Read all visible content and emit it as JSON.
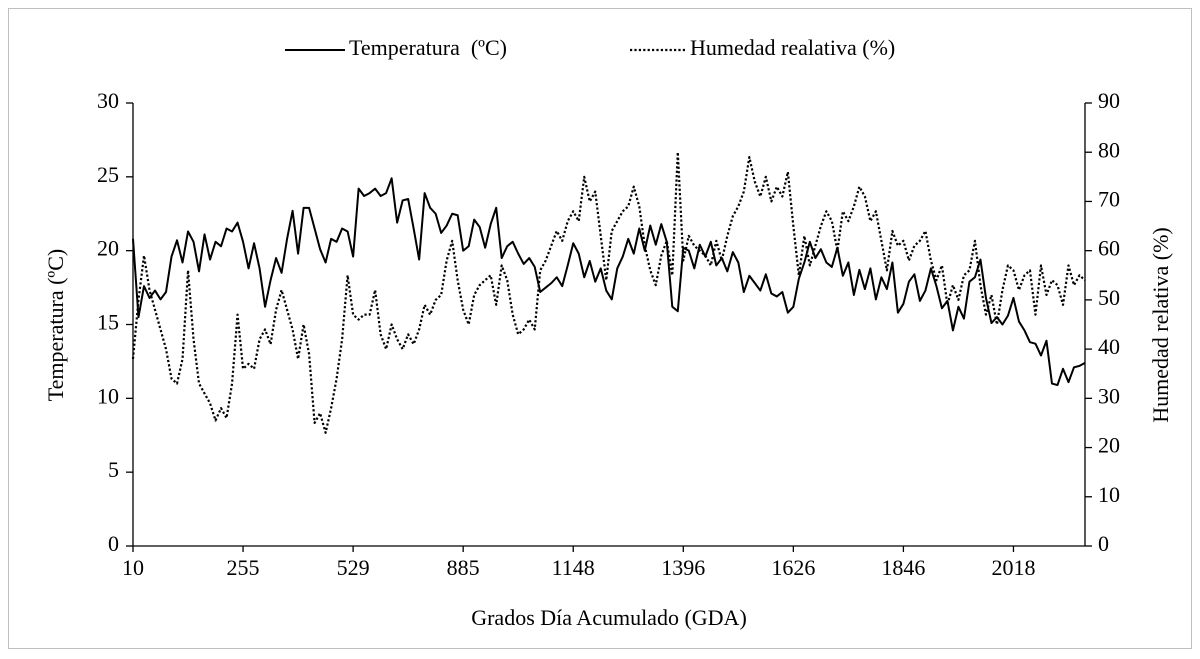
{
  "chart_data": {
    "type": "line",
    "xlabel": "Grados Día Acumulado (GDA)",
    "ylabel": "Temperatura (ºC)",
    "y2label": "Humedad relativa (%)",
    "categories": [
      "10",
      null,
      null,
      null,
      null,
      null,
      null,
      null,
      null,
      null,
      null,
      null,
      null,
      null,
      null,
      null,
      null,
      null,
      null,
      null,
      "255",
      null,
      null,
      null,
      null,
      null,
      null,
      null,
      null,
      null,
      null,
      null,
      null,
      null,
      null,
      null,
      null,
      null,
      null,
      null,
      "529",
      null,
      null,
      null,
      null,
      null,
      null,
      null,
      null,
      null,
      null,
      null,
      null,
      null,
      null,
      null,
      null,
      null,
      null,
      null,
      "885",
      null,
      null,
      null,
      null,
      null,
      null,
      null,
      null,
      null,
      null,
      null,
      null,
      null,
      null,
      null,
      null,
      null,
      null,
      null,
      "1148",
      null,
      null,
      null,
      null,
      null,
      null,
      null,
      null,
      null,
      null,
      null,
      null,
      null,
      null,
      null,
      null,
      null,
      null,
      null,
      "1396",
      null,
      null,
      null,
      null,
      null,
      null,
      null,
      null,
      null,
      null,
      null,
      null,
      null,
      null,
      null,
      null,
      null,
      null,
      null,
      "1626",
      null,
      null,
      null,
      null,
      null,
      null,
      null,
      null,
      null,
      null,
      null,
      null,
      null,
      null,
      null,
      null,
      null,
      null,
      null,
      "1846",
      null,
      null,
      null,
      null,
      null,
      null,
      null,
      null,
      null,
      null,
      null,
      null,
      null,
      null,
      null,
      null,
      null,
      null,
      null,
      "2018",
      null,
      null,
      null,
      null,
      null,
      null,
      null,
      null,
      null,
      null,
      null,
      null,
      null
    ],
    "series": [
      {
        "name": "Temperatura  (ºC)",
        "color": "#000000",
        "style": "solid",
        "axis": "y",
        "values": [
          20.8,
          15.5,
          17.6,
          16.8,
          17.3,
          16.7,
          17.2,
          19.6,
          20.7,
          19.2,
          21.3,
          20.6,
          18.6,
          21.1,
          19.4,
          20.6,
          20.3,
          21.5,
          21.3,
          21.9,
          20.6,
          18.8,
          20.5,
          18.8,
          16.2,
          18.0,
          19.5,
          18.5,
          20.8,
          22.7,
          19.8,
          22.9,
          22.9,
          21.5,
          20.1,
          19.2,
          20.8,
          20.6,
          21.5,
          21.3,
          19.6,
          24.2,
          23.7,
          23.9,
          24.2,
          23.7,
          23.9,
          24.9,
          21.9,
          23.4,
          23.5,
          21.5,
          19.4,
          23.9,
          22.9,
          22.5,
          21.2,
          21.7,
          22.5,
          22.4,
          20.0,
          20.3,
          22.1,
          21.6,
          20.2,
          21.8,
          22.9,
          19.5,
          20.3,
          20.6,
          19.8,
          19.1,
          19.5,
          18.9,
          17.2,
          17.5,
          17.8,
          18.2,
          17.6,
          19.0,
          20.5,
          19.8,
          18.2,
          19.3,
          17.9,
          18.8,
          17.3,
          16.7,
          18.8,
          19.6,
          20.8,
          19.8,
          21.5,
          20.0,
          21.7,
          20.4,
          21.8,
          20.6,
          16.2,
          15.9,
          20.2,
          20.0,
          18.8,
          20.4,
          19.6,
          20.6,
          19.0,
          19.5,
          18.6,
          19.9,
          19.2,
          17.2,
          18.3,
          17.8,
          17.3,
          18.4,
          17.1,
          16.9,
          17.2,
          15.8,
          16.2,
          18.1,
          19.2,
          20.6,
          19.5,
          20.1,
          19.2,
          18.9,
          20.2,
          18.3,
          19.2,
          17.0,
          18.7,
          17.4,
          18.8,
          16.7,
          18.2,
          17.4,
          19.2,
          15.8,
          16.4,
          17.9,
          18.4,
          16.6,
          17.3,
          18.8,
          17.6,
          16.1,
          16.6,
          14.6,
          16.2,
          15.4,
          17.9,
          18.2,
          19.4,
          16.8,
          15.1,
          15.5,
          15.0,
          15.6,
          16.8,
          15.2,
          14.6,
          13.8,
          13.7,
          12.9,
          13.9,
          11.0,
          10.9,
          12.0,
          11.1,
          12.1,
          12.2,
          12.4
        ]
      },
      {
        "name": "Humedad realativa (%)",
        "color": "#000000",
        "style": "dotted",
        "axis": "y2",
        "values": [
          38,
          50,
          59,
          52,
          48,
          44,
          40,
          34,
          33,
          38,
          56,
          42,
          33,
          31,
          29,
          25.5,
          28,
          26,
          33,
          47,
          36,
          37,
          36,
          42,
          44,
          41,
          48,
          52,
          48,
          44,
          38,
          45,
          39,
          25,
          27,
          23,
          28,
          34,
          42,
          55,
          47,
          46,
          47,
          47,
          52,
          43,
          40,
          45,
          42,
          40,
          43,
          41,
          44,
          49,
          47,
          50,
          51,
          58,
          62,
          54,
          48,
          45,
          51,
          53,
          54,
          55,
          49,
          57,
          54,
          47,
          43,
          44,
          46,
          44,
          56,
          58,
          61,
          64,
          62,
          66,
          68,
          66,
          75,
          70,
          72,
          63,
          54,
          64,
          66,
          68,
          69,
          73,
          69,
          61,
          56,
          53,
          59,
          62,
          55,
          80,
          58,
          63,
          61,
          60,
          59,
          57,
          62,
          58,
          63,
          67,
          69,
          72,
          79,
          74,
          71,
          75,
          70,
          73,
          71,
          76,
          65,
          55,
          63,
          57,
          61,
          65,
          68,
          66,
          60,
          68,
          66,
          69,
          73,
          71,
          66,
          68,
          62,
          56,
          64,
          61,
          62,
          58,
          61,
          62,
          64,
          58,
          54,
          57,
          49,
          53,
          50,
          55,
          56,
          62,
          53,
          47,
          51,
          45,
          52,
          57,
          56,
          52,
          55,
          56,
          47,
          57,
          51,
          54,
          53,
          49,
          57,
          53,
          55,
          54
        ]
      }
    ],
    "ylim": [
      0,
      30
    ],
    "yticks": [
      0,
      5,
      10,
      15,
      20,
      25,
      30
    ],
    "y2lim": [
      0,
      90
    ],
    "y2ticks": [
      0,
      10,
      20,
      30,
      40,
      50,
      60,
      70,
      80,
      90
    ],
    "legend": "top"
  }
}
